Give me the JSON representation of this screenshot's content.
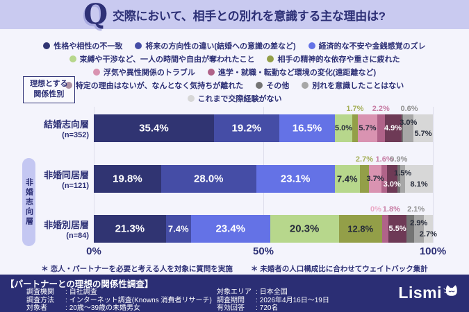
{
  "header": {
    "q_icon": "Q",
    "title": "交際において、相手との別れを意識する主な理由は?"
  },
  "axis_note_box": {
    "line1": "理想とする",
    "line2": "関係性別"
  },
  "group_pill": "非婚志向層",
  "chart_data": {
    "type": "bar",
    "subtype": "horizontal-stacked-100pct",
    "xlim": [
      0,
      100
    ],
    "xticks": [
      "0%",
      "50%",
      "100%"
    ],
    "grid": "vertical ticks at 0/50/100",
    "legend_position": "top-center",
    "categories": [
      {
        "label": "結婚志向層",
        "n": "(n=352)"
      },
      {
        "label": "非婚同居層",
        "n": "(n=121)"
      },
      {
        "label": "非婚別居層",
        "n": "(n=84)"
      }
    ],
    "legend_rows": [
      [
        0,
        1,
        2
      ],
      [
        3,
        4
      ],
      [
        5,
        6
      ],
      [
        7,
        8,
        9
      ],
      [
        10
      ]
    ],
    "series": [
      {
        "name": "性格や相性の不一致",
        "color": "#303472",
        "text": "light",
        "values": [
          35.4,
          19.8,
          21.3
        ],
        "pos": [
          "in",
          "in",
          "in"
        ]
      },
      {
        "name": "将来の方向性の違い(結婚への意識の差など)",
        "color": "#454da6",
        "text": "light",
        "values": [
          19.2,
          28.0,
          7.4
        ],
        "pos": [
          "in",
          "in",
          "in"
        ]
      },
      {
        "name": "経済的な不安や金銭感覚のズレ",
        "color": "#6472e6",
        "text": "light",
        "values": [
          16.5,
          23.1,
          23.4
        ],
        "pos": [
          "in",
          "in",
          "in"
        ]
      },
      {
        "name": "束縛や干渉など、一人の時間や自由が奪われたこと",
        "color": "#b7d78c",
        "text": "dark",
        "values": [
          5.0,
          7.4,
          20.3
        ],
        "pos": [
          "in",
          "in",
          "in"
        ]
      },
      {
        "name": "相手の精神的な依存や重さに疲れた",
        "color": "#939f48",
        "text": "dark",
        "above": "#a5af58",
        "values": [
          1.7,
          2.7,
          12.8
        ],
        "pos": [
          "up",
          "up",
          "in"
        ]
      },
      {
        "name": "浮気や異性関係のトラブル",
        "color": "#d993b1",
        "text": "dark",
        "above": "#eba6c4",
        "values": [
          5.7,
          3.7,
          0
        ],
        "pos": [
          "in",
          "in",
          "up"
        ],
        "dx": [
          0,
          0,
          -9
        ]
      },
      {
        "name": "進学・就職・転勤など環境の変化(遠距離など)",
        "color": "#b06389",
        "text": "dark",
        "above": "#c77ca4",
        "values": [
          2.2,
          1.6,
          1.8
        ],
        "pos": [
          "up",
          "up",
          "up"
        ],
        "dx": [
          0,
          0,
          9
        ]
      },
      {
        "name": "特定の理由はないが、なんとなく気持ちが離れた",
        "color": "#6e3a56",
        "text": "light",
        "values": [
          4.9,
          3.0,
          5.5
        ],
        "pos": [
          "in",
          "in",
          "in"
        ],
        "dy": [
          0,
          8,
          0
        ]
      },
      {
        "name": "その他",
        "color": "#747474",
        "text": "light",
        "above": "#8f8f8f",
        "values": [
          0.6,
          0.9,
          2.1
        ],
        "pos": [
          "up",
          "up",
          "up"
        ],
        "dx": [
          10,
          0,
          8
        ]
      },
      {
        "name": "別れを意識したことはない",
        "color": "#a7a7a7",
        "text": "dark",
        "values": [
          3.0,
          1.5,
          2.9
        ],
        "pos": [
          "in",
          "in",
          "in"
        ],
        "dy": [
          -8,
          -8,
          -8
        ]
      },
      {
        "name": "これまで交際経験がない",
        "color": "#d7d7d7",
        "text": "dark",
        "values": [
          5.7,
          8.1,
          2.7
        ],
        "pos": [
          "in",
          "in",
          "in"
        ],
        "dy": [
          8,
          8,
          8
        ]
      }
    ]
  },
  "footnotes": [
    "＊ 恋人・パートナーを必要と考える人を対象に質問を実施",
    "＊ 未婚者の人口構成比に合わせてウェイトバック集計"
  ],
  "survey_box": {
    "title": "【パートナーとの理想の関係性調査】",
    "separator": ":",
    "left": [
      {
        "label": "調査機関",
        "value": "自社調査"
      },
      {
        "label": "調査方法",
        "value": "インターネット調査(Knowns 消費者リサーチ)"
      },
      {
        "label": "対象者",
        "value": "20歳〜39歳の未婚男女"
      }
    ],
    "right": [
      {
        "label": "対象エリア",
        "value": "日本全国"
      },
      {
        "label": "調査期間",
        "value": "2026年4月16日〜19日"
      },
      {
        "label": "有効回答",
        "value": "720名"
      }
    ],
    "logo_text": "Lismi"
  },
  "colors": {
    "accent_navy": "#2d3076",
    "header_band": "#c9caf0",
    "page_bg": "#f4f4fc",
    "footer_bg": "#2b2e74",
    "pill_bg": "#c4c7f2"
  }
}
